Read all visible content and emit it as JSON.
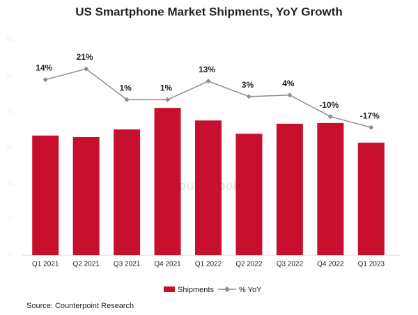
{
  "chart_data": {
    "type": "bar_line",
    "title": "US Smartphone Market Shipments, YoY Growth",
    "categories": [
      "Q1 2021",
      "Q2 2021",
      "Q3 2021",
      "Q4 2021",
      "Q1 2022",
      "Q2 2022",
      "Q3 2022",
      "Q4 2022",
      "Q1 2023"
    ],
    "series": [
      {
        "name": "Shipments",
        "type": "bar",
        "color": "#c8102e",
        "values": [
          33.3,
          32.9,
          35.0,
          41.0,
          37.5,
          33.8,
          36.6,
          36.8,
          31.3
        ]
      },
      {
        "name": "% YoY",
        "type": "line",
        "axis": "y2",
        "color": "#8c8c8c",
        "values": [
          14,
          21,
          1,
          1,
          13,
          3,
          4,
          -10,
          -17
        ],
        "value_labels": [
          "14%",
          "21%",
          "1%",
          "1%",
          "13%",
          "3%",
          "4%",
          "-10%",
          "-17%"
        ]
      }
    ],
    "ylim": [
      0,
      60
    ],
    "yticks": [
      0,
      10,
      20,
      30,
      40,
      50,
      60
    ],
    "y2lim": [
      -100,
      40
    ],
    "grid": false,
    "legend": "bottom",
    "watermark": "Counterpoint",
    "source": "Source: Counterpoint Research"
  }
}
